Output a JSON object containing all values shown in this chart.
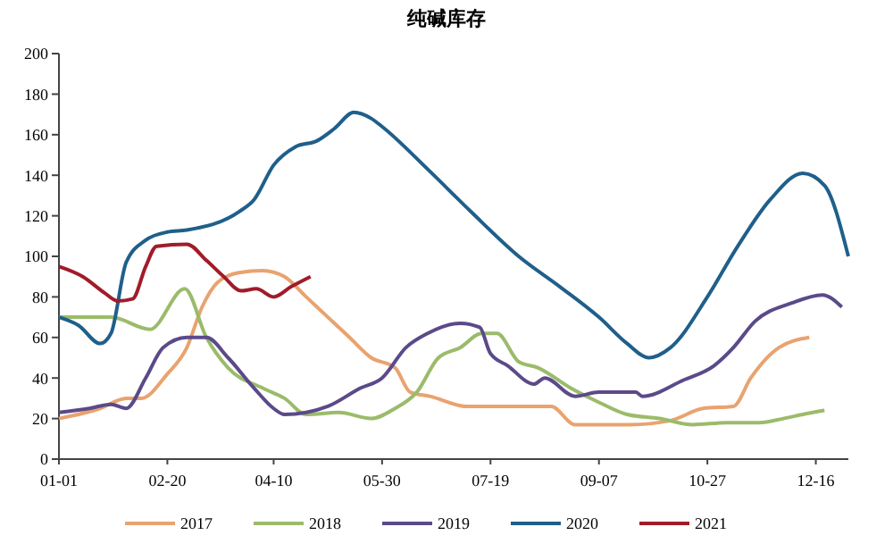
{
  "chart_data": {
    "type": "line",
    "title": "纯碱库存",
    "xlim": [
      "--01-01",
      "--12-31"
    ],
    "ylim": [
      0,
      200
    ],
    "yticks": [
      0,
      20,
      40,
      60,
      80,
      100,
      120,
      140,
      160,
      180,
      200
    ],
    "xticks": [
      {
        "value": "--01-01",
        "label": "01-01"
      },
      {
        "value": "--02-20",
        "label": "02-20"
      },
      {
        "value": "--04-10",
        "label": "04-10"
      },
      {
        "value": "--05-30",
        "label": "05-30"
      },
      {
        "value": "--07-19",
        "label": "07-19"
      },
      {
        "value": "--09-07",
        "label": "09-07"
      },
      {
        "value": "--10-27",
        "label": "10-27"
      },
      {
        "value": "--12-16",
        "label": "12-16"
      }
    ],
    "grid": false,
    "legend": "bottom",
    "marker": "none",
    "line_style": "solid",
    "series": [
      {
        "name": "2017",
        "color": "#e9a36f",
        "x": [
          "--01-01",
          "--01-20",
          "--02-01",
          "--02-08",
          "--02-20",
          "--03-01",
          "--03-08",
          "--03-15",
          "--03-25",
          "--04-05",
          "--04-15",
          "--04-25",
          "--05-05",
          "--05-15",
          "--05-25",
          "--06-05",
          "--06-12",
          "--06-21",
          "--07-08",
          "--08-16",
          "--08-27",
          "--09-21",
          "--10-10",
          "--10-25",
          "--11-08",
          "--11-16",
          "--11-29",
          "--12-13"
        ],
        "values": [
          20,
          25,
          30,
          30,
          42,
          55,
          75,
          87,
          92,
          93,
          90,
          80,
          70,
          60,
          50,
          45,
          33,
          31,
          26,
          26,
          17,
          17,
          19,
          25,
          26,
          40,
          55,
          60
        ]
      },
      {
        "name": "2018",
        "color": "#9bbb6a",
        "x": [
          "--01-01",
          "--01-25",
          "--02-12",
          "--02-28",
          "--03-10",
          "--03-20",
          "--04-05",
          "--04-15",
          "--04-25",
          "--05-10",
          "--05-25",
          "--06-05",
          "--06-15",
          "--06-25",
          "--07-05",
          "--07-15",
          "--07-22",
          "--08-01",
          "--08-10",
          "--08-25",
          "--09-07",
          "--09-20",
          "--10-05",
          "--10-20",
          "--11-05",
          "--11-20",
          "--12-01",
          "--12-10",
          "--12-20"
        ],
        "values": [
          70,
          70,
          64,
          84,
          60,
          45,
          35,
          30,
          22,
          23,
          20,
          25,
          33,
          50,
          55,
          62,
          62,
          48,
          45,
          35,
          28,
          22,
          20,
          17,
          18,
          18,
          20,
          22,
          24
        ]
      },
      {
        "name": "2019",
        "color": "#5b4a8a",
        "x": [
          "--01-01",
          "--01-15",
          "--01-25",
          "--02-01",
          "--02-10",
          "--02-18",
          "--03-01",
          "--03-10",
          "--03-20",
          "--04-01",
          "--04-10",
          "--04-15",
          "--04-25",
          "--05-05",
          "--05-20",
          "--05-30",
          "--06-10",
          "--06-20",
          "--07-05",
          "--07-14",
          "--07-19",
          "--07-27",
          "--08-08",
          "--08-13",
          "--08-27",
          "--09-07",
          "--09-24",
          "--09-27",
          "--10-16",
          "--10-30",
          "--11-08",
          "--11-18",
          "--12-05",
          "--12-19",
          "--12-28"
        ],
        "values": [
          23,
          25,
          27,
          25,
          40,
          55,
          60,
          60,
          50,
          35,
          25,
          22,
          23,
          26,
          35,
          40,
          55,
          62,
          67,
          65,
          52,
          46,
          37,
          40,
          31,
          33,
          33,
          31,
          39,
          46,
          55,
          68,
          77,
          81,
          75
        ]
      },
      {
        "name": "2020",
        "color": "#1f5f8b",
        "x": [
          "--01-01",
          "--01-10",
          "--01-20",
          "--01-25",
          "--02-01",
          "--02-10",
          "--02-20",
          "--03-01",
          "--03-25",
          "--04-01",
          "--04-10",
          "--04-20",
          "--04-30",
          "--05-08",
          "--05-17",
          "--05-25",
          "--05-30",
          "--06-20",
          "--07-10",
          "--08-01",
          "--08-20",
          "--09-07",
          "--09-20",
          "--09-30",
          "--10-10",
          "--10-27",
          "--11-10",
          "--11-25",
          "--12-10",
          "--12-20",
          "--12-31"
        ],
        "values": [
          70,
          66,
          57,
          62,
          97,
          108,
          112,
          113,
          122,
          128,
          145,
          154,
          157,
          163,
          171,
          168,
          164,
          143,
          122,
          100,
          85,
          70,
          57,
          50,
          55,
          80,
          105,
          128,
          141,
          135,
          100
        ]
      },
      {
        "name": "2021",
        "color": "#a01c2a",
        "x": [
          "--01-01",
          "--01-12",
          "--01-22",
          "--01-28",
          "--02-04",
          "--02-10",
          "--02-15",
          "--03-01",
          "--03-10",
          "--03-18",
          "--03-26",
          "--04-02",
          "--04-10",
          "--04-18",
          "--04-27"
        ],
        "values": [
          95,
          90,
          82,
          78,
          79,
          95,
          105,
          106,
          98,
          90,
          83,
          84,
          80,
          85,
          90
        ]
      }
    ]
  }
}
